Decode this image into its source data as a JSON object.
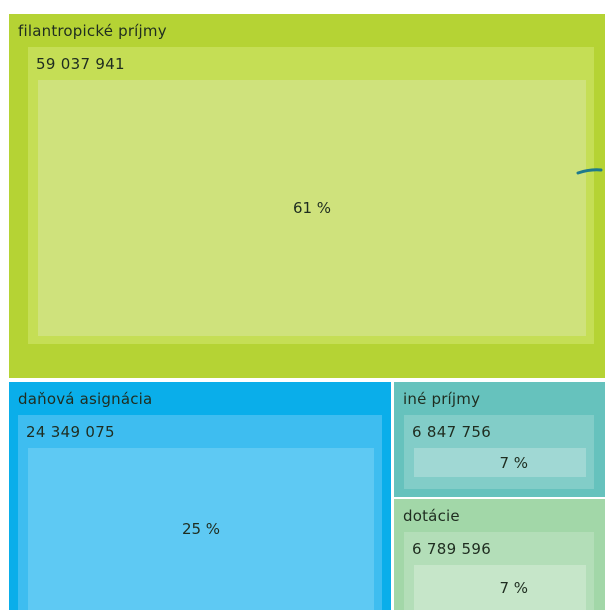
{
  "chart_data": {
    "type": "treemap",
    "items": [
      {
        "name": "filantropické príjmy",
        "value": 59037941,
        "value_label": "59 037 941",
        "percent_label": "61 %",
        "color": "#b5d334",
        "inner_color": "#c5de55",
        "core_color": "#cfe27c"
      },
      {
        "name": "daňová asignácia",
        "value": 24349075,
        "value_label": "24 349 075",
        "percent_label": "25 %",
        "color": "#0aaeea",
        "inner_color": "#3ebdf0",
        "core_color": "#5ec9f3"
      },
      {
        "name": "iné príjmy",
        "value": 6847756,
        "value_label": "6 847 756",
        "percent_label": "7 %",
        "color": "#66c2bd",
        "inner_color": "#82cdc8",
        "core_color": "#a0d8d4"
      },
      {
        "name": "dotácie",
        "value": 6789596,
        "value_label": "6 789 596",
        "percent_label": "7 %",
        "color": "#a2d7a8",
        "inner_color": "#b3deb8",
        "core_color": "#c6e6c9"
      }
    ]
  }
}
